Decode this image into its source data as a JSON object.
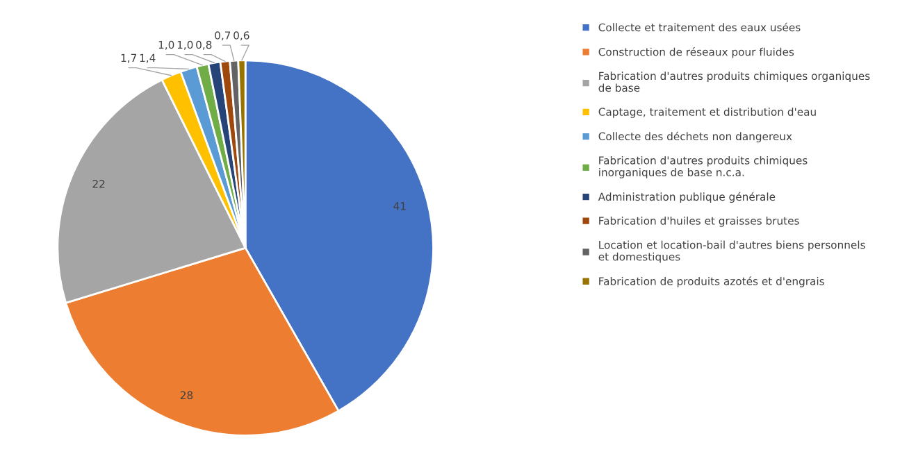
{
  "chart_data": {
    "type": "pie",
    "categories": [
      "Collecte et traitement des eaux usées",
      "Construction de réseaux pour fluides",
      "Fabrication d'autres produits chimiques organiques de base",
      "Captage, traitement et distribution d'eau",
      "Collecte des déchets non dangereux",
      "Fabrication d'autres produits chimiques inorganiques de base n.c.a.",
      "Administration publique générale",
      "Fabrication d'huiles et graisses brutes",
      "Location et location-bail d'autres biens personnels et domestiques",
      "Fabrication de produits azotés et d'engrais"
    ],
    "values": [
      41,
      28,
      22,
      1.7,
      1.4,
      1.0,
      1.0,
      0.8,
      0.7,
      0.6
    ],
    "value_labels": [
      "41",
      "28",
      "22",
      "1,7",
      "1,4",
      "1,0",
      "1,0",
      "0,8",
      "0,7",
      "0,6"
    ],
    "colors": [
      "#4472c4",
      "#ed7d31",
      "#a5a5a5",
      "#ffc000",
      "#5b9bd5",
      "#70ad47",
      "#264478",
      "#9e480e",
      "#636363",
      "#997300"
    ],
    "legend": "right"
  }
}
